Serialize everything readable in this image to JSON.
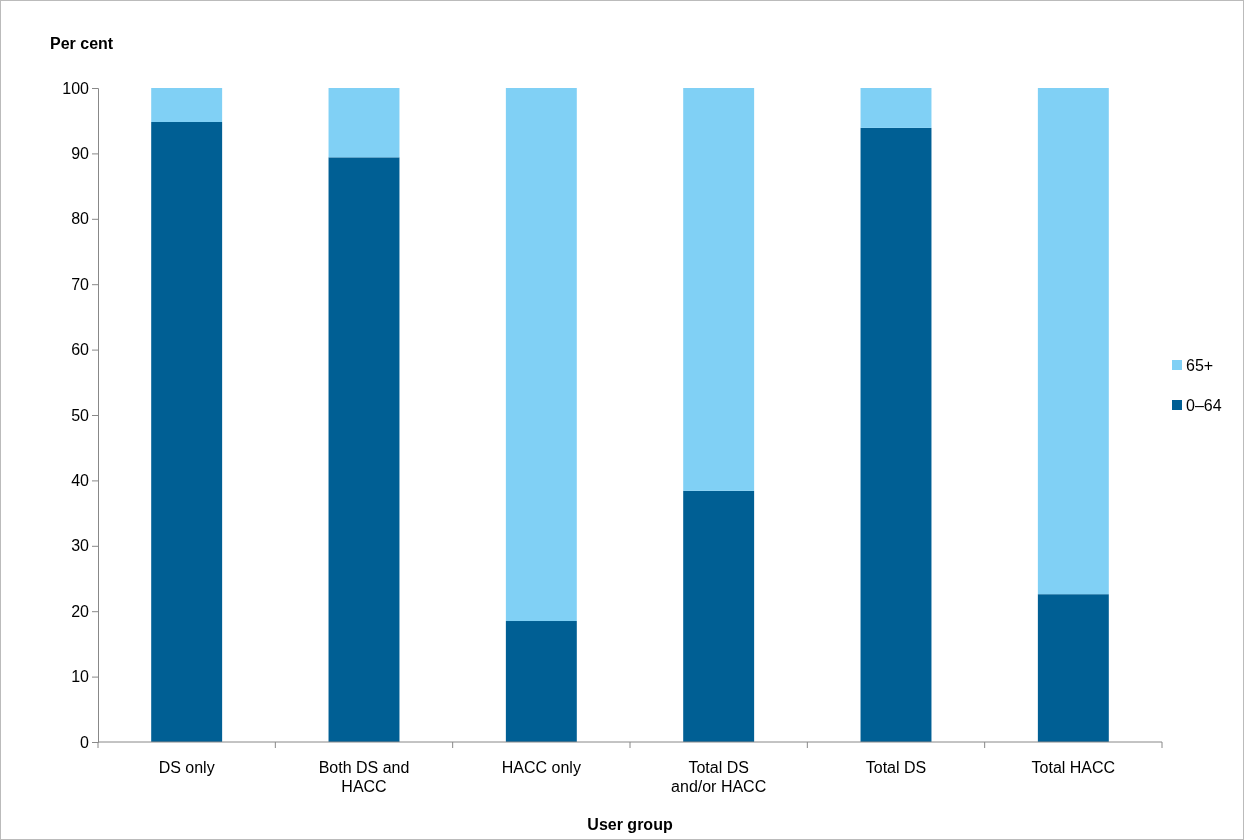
{
  "chart_data": {
    "type": "bar",
    "stacked": true,
    "xlabel": "User group",
    "ylabel": "Per cent",
    "categories": [
      "DS only",
      "Both DS and HACC",
      "HACC only",
      "Total DS and/or HACC",
      "Total DS",
      "Total HACC"
    ],
    "series": [
      {
        "name": "0–64",
        "color": "#005f94",
        "values": [
          94.8,
          89.4,
          18.5,
          38.4,
          93.9,
          22.6
        ]
      },
      {
        "name": "65+",
        "color": "#80d0f5",
        "values": [
          5.2,
          10.6,
          81.5,
          61.6,
          6.1,
          77.4
        ]
      }
    ],
    "ylim": [
      0,
      100
    ],
    "yticks": [
      0,
      10,
      20,
      30,
      40,
      50,
      60,
      70,
      80,
      90,
      100
    ],
    "legend": "right"
  }
}
